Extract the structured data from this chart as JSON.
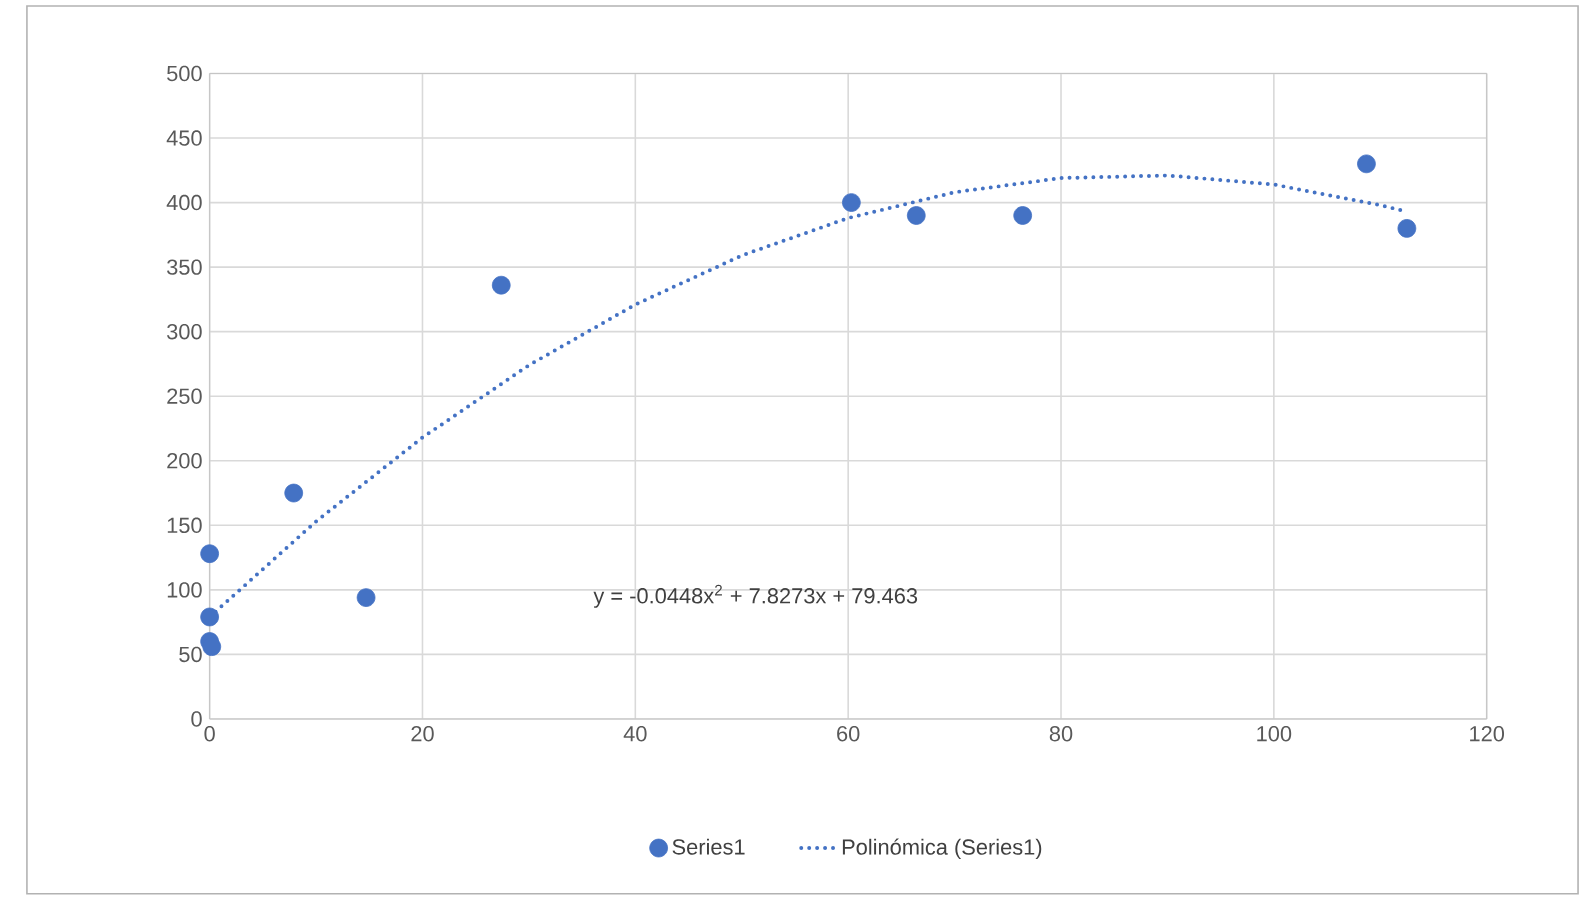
{
  "chart_data": {
    "type": "scatter",
    "xlim": [
      0,
      120
    ],
    "xticks": [
      0,
      20,
      40,
      60,
      80,
      100,
      120
    ],
    "ylim": [
      0,
      500
    ],
    "yticks": [
      0,
      50,
      100,
      150,
      200,
      250,
      300,
      350,
      400,
      450,
      500
    ],
    "grid": true,
    "legend": "bottom",
    "series": [
      {
        "name": "Series1",
        "marker": "circle",
        "color": "#4472c4",
        "x": [
          0,
          0,
          0,
          0.2,
          7.9,
          14.7,
          27.4,
          60.3,
          66.4,
          76.4,
          108.7,
          112.5
        ],
        "values": [
          128,
          79,
          60,
          56,
          175,
          94,
          336,
          400,
          390,
          390,
          430,
          380
        ]
      },
      {
        "name": "Polinómica (Series1)",
        "type": "line",
        "line_style": "dotted",
        "marker": "none",
        "color": "#4472c4",
        "x": [
          0,
          10,
          20,
          30,
          40,
          50,
          60,
          70,
          80,
          90,
          100,
          110,
          112.5
        ],
        "values": [
          79,
          153,
          218,
          274,
          321,
          359,
          388,
          408,
          419,
          421,
          414,
          398,
          393
        ]
      }
    ],
    "annotations": [
      "y = -0.0448x$^{2}$ + 7.8273x + 79.463"
    ]
  }
}
